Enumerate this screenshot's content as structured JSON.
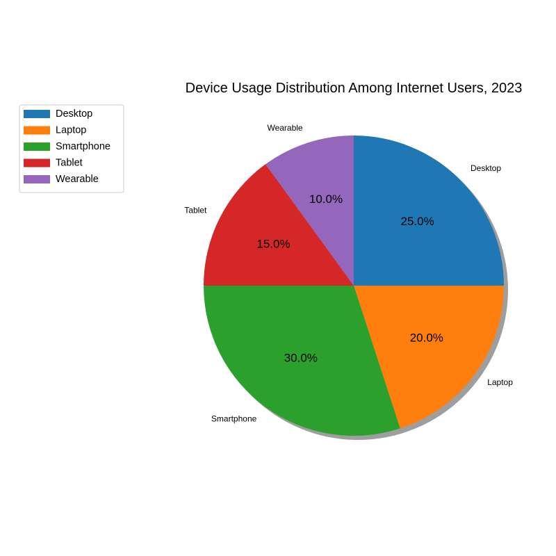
{
  "chart_data": {
    "type": "pie",
    "title": "Device Usage Distribution Among Internet Users, 2023",
    "categories": [
      "Desktop",
      "Laptop",
      "Smartphone",
      "Tablet",
      "Wearable"
    ],
    "values": [
      25,
      20,
      30,
      15,
      10
    ],
    "percent_labels": [
      "25.0%",
      "20.0%",
      "30.0%",
      "15.0%",
      "10.0%"
    ],
    "colors": [
      "#1f77b4",
      "#ff7f0e",
      "#2ca02c",
      "#d62728",
      "#9467bd"
    ],
    "start_angle_deg": 90,
    "direction": "clockwise",
    "shadow": true,
    "legend_position": "upper-left"
  }
}
